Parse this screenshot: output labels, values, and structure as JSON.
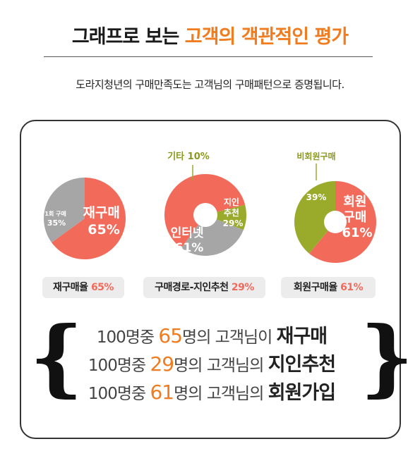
{
  "header": {
    "title_dark": "그래프로 보는",
    "title_accent": "고객의 객관적인 평가",
    "subtitle": "도라지청년의 구매만족도는 고객님의 구매패턴으로 증명됩니다."
  },
  "colors": {
    "coral": "#f26a5a",
    "gray": "#a6a6a6",
    "olive": "#9aab2c",
    "orange": "#f07c1f"
  },
  "chart_data": [
    {
      "type": "pie",
      "slices": [
        {
          "name": "재구매",
          "value": 65,
          "label_line1": "재구매",
          "label_pct": "65%"
        },
        {
          "name": "1회 구매",
          "value": 35,
          "label_line1": "1회 구매",
          "label_pct": "35%"
        }
      ],
      "caption_label": "재구매율",
      "caption_value": "65%"
    },
    {
      "type": "pie",
      "slices": [
        {
          "name": "인터넷",
          "value": 61,
          "label_line1": "인터넷",
          "label_pct": "61%"
        },
        {
          "name": "기타",
          "value": 10,
          "label_line1": "기타",
          "label_pct": "10%"
        },
        {
          "name": "지인추천",
          "value": 29,
          "label_line1": "지인",
          "label_line2": "추천",
          "label_pct": "29%"
        }
      ],
      "caption_label": "구매경로-지인추천",
      "caption_value": "29%"
    },
    {
      "type": "pie",
      "slices": [
        {
          "name": "회원구매",
          "value": 61,
          "label_line1": "회원",
          "label_line2": "구매",
          "label_pct": "61%"
        },
        {
          "name": "비회원구매",
          "value": 39,
          "label_line1": "비회원구매",
          "label_pct": "39%"
        }
      ],
      "caption_label": "회원구매율",
      "caption_value": "61%"
    }
  ],
  "summary": [
    {
      "prefix": "100명중",
      "num": "65",
      "mid": "명의 고객님이",
      "strong": "재구매"
    },
    {
      "prefix": "100명중",
      "num": "29",
      "mid": "명의 고객님의",
      "strong": "지인추천"
    },
    {
      "prefix": "100명중",
      "num": "61",
      "mid": "명의 고객님의",
      "strong": "회원가입"
    }
  ],
  "braces": {
    "left": "{",
    "right": "}"
  }
}
